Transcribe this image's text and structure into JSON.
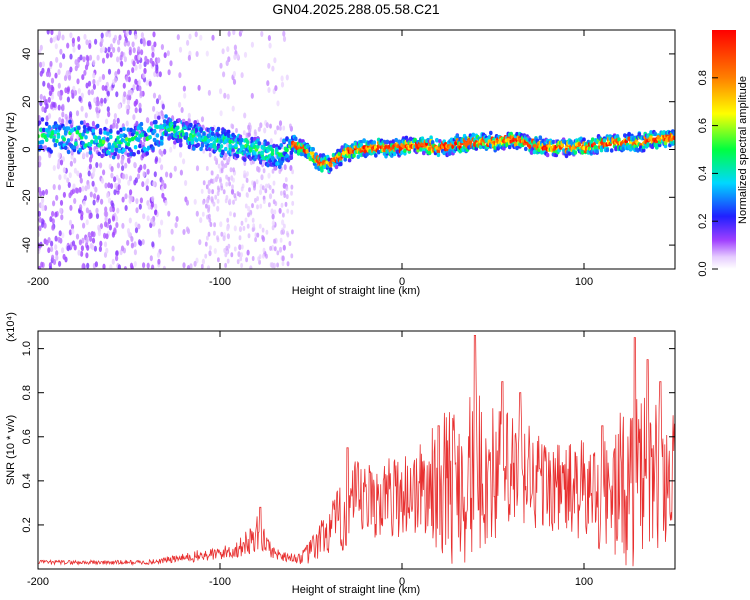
{
  "title": "GN04.2025.288.05.58.C21",
  "chart_data": [
    {
      "type": "heatmap",
      "name": "spectrogram",
      "xlabel": "Height of straight line (km)",
      "ylabel": "Frequency (Hz)",
      "xlim": [
        -200,
        150
      ],
      "ylim": [
        -50,
        50
      ],
      "xticks": [
        -200,
        -100,
        0,
        100
      ],
      "xtick_labels": [
        "-200",
        "-100",
        "0",
        "100"
      ],
      "yticks": [
        -40,
        -20,
        0,
        20,
        40
      ],
      "ytick_labels": [
        "-40",
        "-20",
        "0",
        "20",
        "40"
      ],
      "colorbar": {
        "label": "Normalized spectral amplitude",
        "range": [
          0,
          1
        ],
        "ticks": [
          0,
          0.2,
          0.4,
          0.6,
          0.8
        ],
        "tick_labels": [
          "0.0",
          "0.2",
          "0.4",
          "0.6",
          "0.8"
        ],
        "colormap": "rainbow"
      },
      "ridge_center_hz": [
        [
          -200,
          6
        ],
        [
          -180,
          5
        ],
        [
          -160,
          3
        ],
        [
          -140,
          4
        ],
        [
          -130,
          9
        ],
        [
          -120,
          7
        ],
        [
          -100,
          3
        ],
        [
          -80,
          0
        ],
        [
          -70,
          -3
        ],
        [
          -60,
          2
        ],
        [
          -55,
          1
        ],
        [
          -50,
          -2
        ],
        [
          -45,
          -6
        ],
        [
          -40,
          -6
        ],
        [
          -35,
          -3
        ],
        [
          -30,
          -1
        ],
        [
          -20,
          0
        ],
        [
          -10,
          1
        ],
        [
          0,
          1
        ],
        [
          10,
          2
        ],
        [
          20,
          1
        ],
        [
          30,
          2
        ],
        [
          40,
          3
        ],
        [
          50,
          3
        ],
        [
          60,
          4
        ],
        [
          70,
          2
        ],
        [
          80,
          1
        ],
        [
          90,
          1
        ],
        [
          100,
          1
        ],
        [
          110,
          2
        ],
        [
          120,
          3
        ],
        [
          130,
          3
        ],
        [
          140,
          4
        ],
        [
          150,
          5
        ]
      ]
    },
    {
      "type": "line",
      "name": "snr",
      "xlabel": "Height of straight line (km)",
      "ylabel": "SNR (10 * v/v)",
      "y_multiplier": "(x10⁴)",
      "xlim": [
        -200,
        150
      ],
      "ylim": [
        0,
        1.08
      ],
      "xticks": [
        -200,
        -100,
        0,
        100
      ],
      "xtick_labels": [
        "-200",
        "-100",
        "0",
        "100"
      ],
      "yticks": [
        0.2,
        0.4,
        0.6,
        0.8,
        1.0
      ],
      "ytick_labels": [
        "0.2",
        "0.4",
        "0.6",
        "0.8",
        "1.0"
      ],
      "color": "#e83030",
      "envelope_x": [
        -200,
        -180,
        -160,
        -140,
        -120,
        -110,
        -100,
        -90,
        -85,
        -80,
        -75,
        -70,
        -60,
        -55,
        -50,
        -40,
        -30,
        -25,
        -20,
        -10,
        0,
        10,
        20,
        30,
        40,
        50,
        60,
        70,
        80,
        90,
        100,
        110,
        120,
        130,
        140,
        150
      ],
      "envelope_base": [
        0.03,
        0.03,
        0.03,
        0.03,
        0.05,
        0.06,
        0.07,
        0.09,
        0.12,
        0.16,
        0.12,
        0.07,
        0.05,
        0.05,
        0.08,
        0.18,
        0.25,
        0.3,
        0.3,
        0.32,
        0.34,
        0.36,
        0.38,
        0.4,
        0.42,
        0.44,
        0.42,
        0.42,
        0.38,
        0.36,
        0.35,
        0.33,
        0.36,
        0.4,
        0.42,
        0.42
      ],
      "envelope_amp": [
        0.01,
        0.01,
        0.01,
        0.01,
        0.02,
        0.03,
        0.03,
        0.04,
        0.06,
        0.09,
        0.05,
        0.03,
        0.02,
        0.03,
        0.06,
        0.12,
        0.18,
        0.2,
        0.18,
        0.18,
        0.2,
        0.22,
        0.3,
        0.4,
        0.38,
        0.32,
        0.3,
        0.28,
        0.2,
        0.22,
        0.24,
        0.26,
        0.36,
        0.4,
        0.34,
        0.3
      ],
      "peaks": [
        [
          -78,
          0.28
        ],
        [
          -30,
          0.55
        ],
        [
          20,
          0.65
        ],
        [
          40,
          1.06
        ],
        [
          55,
          0.85
        ],
        [
          65,
          0.8
        ],
        [
          110,
          0.65
        ],
        [
          128,
          1.05
        ],
        [
          135,
          0.95
        ],
        [
          142,
          0.85
        ]
      ]
    }
  ]
}
